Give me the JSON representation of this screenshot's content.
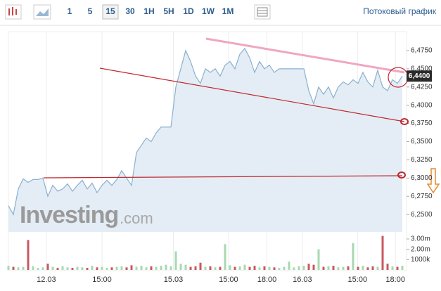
{
  "toolbar": {
    "buttons": [
      "1",
      "5",
      "15",
      "30",
      "1H",
      "5H",
      "1D",
      "1W",
      "1M"
    ],
    "selected": 2,
    "stream": "Потоковый график"
  },
  "watermark": {
    "brand": "Investing",
    "suffix": ".com"
  },
  "chart_data": {
    "type": "line",
    "color": "#8ab0d0",
    "fill": "#e4edf5",
    "grid": true,
    "x": [
      0,
      1,
      2,
      3,
      4,
      5,
      6,
      7,
      8,
      9,
      10,
      11,
      12,
      13,
      14,
      15,
      16,
      17,
      18,
      19,
      20,
      21,
      22,
      23,
      24,
      25,
      26,
      27,
      28,
      29,
      30,
      31,
      32,
      33,
      34,
      35,
      36,
      37,
      38,
      39,
      40,
      41,
      42,
      43,
      44,
      45,
      46,
      47,
      48,
      49,
      50,
      51,
      52,
      53,
      54,
      55,
      56,
      57,
      58,
      59,
      60,
      61,
      62,
      63,
      64,
      65,
      66,
      67,
      68,
      69,
      70,
      71,
      72,
      73,
      74,
      75,
      76,
      77,
      78,
      79,
      80
    ],
    "values": [
      6.262,
      6.25,
      6.285,
      6.299,
      6.294,
      6.298,
      6.298,
      6.3,
      6.275,
      6.29,
      6.282,
      6.285,
      6.292,
      6.282,
      6.29,
      6.297,
      6.285,
      6.293,
      6.28,
      6.29,
      6.297,
      6.29,
      6.298,
      6.31,
      6.3,
      6.29,
      6.335,
      6.345,
      6.355,
      6.35,
      6.362,
      6.37,
      6.37,
      6.37,
      6.425,
      6.45,
      6.475,
      6.46,
      6.44,
      6.43,
      6.45,
      6.445,
      6.45,
      6.44,
      6.455,
      6.46,
      6.45,
      6.47,
      6.478,
      6.465,
      6.445,
      6.46,
      6.45,
      6.455,
      6.445,
      6.45,
      6.45,
      6.45,
      6.45,
      6.45,
      6.45,
      6.42,
      6.402,
      6.425,
      6.415,
      6.425,
      6.41,
      6.425,
      6.432,
      6.428,
      6.435,
      6.43,
      6.445,
      6.432,
      6.425,
      6.448,
      6.425,
      6.42,
      6.435,
      6.43,
      6.44
    ],
    "xlim": [
      0,
      80
    ],
    "ylim": [
      6.226,
      6.501
    ],
    "xticks": [
      {
        "value": 7.7,
        "label": "12.03"
      },
      {
        "value": 19,
        "label": "15:00"
      },
      {
        "value": 33.5,
        "label": "15.03"
      },
      {
        "value": 44.7,
        "label": "15:00"
      },
      {
        "value": 52.5,
        "label": "18:00"
      },
      {
        "value": 59.7,
        "label": "16.03"
      },
      {
        "value": 70.9,
        "label": "15:00"
      },
      {
        "value": 78.6,
        "label": "18:00"
      }
    ],
    "yticks": [
      {
        "value": 6.475,
        "label": "6,4750"
      },
      {
        "value": 6.45,
        "label": "6,4500"
      },
      {
        "value": 6.425,
        "label": "6,4250"
      },
      {
        "value": 6.4,
        "label": "6,4000"
      },
      {
        "value": 6.375,
        "label": "6,3750"
      },
      {
        "value": 6.35,
        "label": "6,3500"
      },
      {
        "value": 6.325,
        "label": "6,3250"
      },
      {
        "value": 6.3,
        "label": "6,3000"
      },
      {
        "value": 6.275,
        "label": "6,2750"
      },
      {
        "value": 6.25,
        "label": "6,2500"
      }
    ],
    "last_price": {
      "value": 6.44,
      "label": "6,4400"
    },
    "volume": {
      "up_color": "#a7d8b2",
      "down_color": "#c9585f",
      "values": [
        400000,
        300000,
        250000,
        300000,
        2900000,
        350000,
        200000,
        250000,
        600000,
        300000,
        200000,
        350000,
        250000,
        200000,
        300000,
        250000,
        200000,
        400000,
        250000,
        300000,
        200000,
        250000,
        300000,
        350000,
        250000,
        450000,
        300000,
        400000,
        250000,
        350000,
        300000,
        400000,
        500000,
        350000,
        1800000,
        600000,
        500000,
        300000,
        350000,
        700000,
        300000,
        350000,
        250000,
        300000,
        2500000,
        450000,
        300000,
        350000,
        500000,
        300000,
        400000,
        250000,
        350000,
        300000,
        250000,
        200000,
        300000,
        800000,
        250000,
        350000,
        400000,
        600000,
        500000,
        2000000,
        300000,
        350000,
        400000,
        250000,
        300000,
        350000,
        2600000,
        300000,
        400000,
        250000,
        350000,
        300000,
        3300000,
        600000,
        350000,
        300000,
        400000
      ],
      "ylim": [
        0,
        3340000
      ],
      "yticks": [
        {
          "value": 3000000,
          "label": "3.00m"
        },
        {
          "value": 2000000,
          "label": "2.00m"
        },
        {
          "value": 1000000,
          "label": "1000k"
        }
      ]
    }
  }
}
